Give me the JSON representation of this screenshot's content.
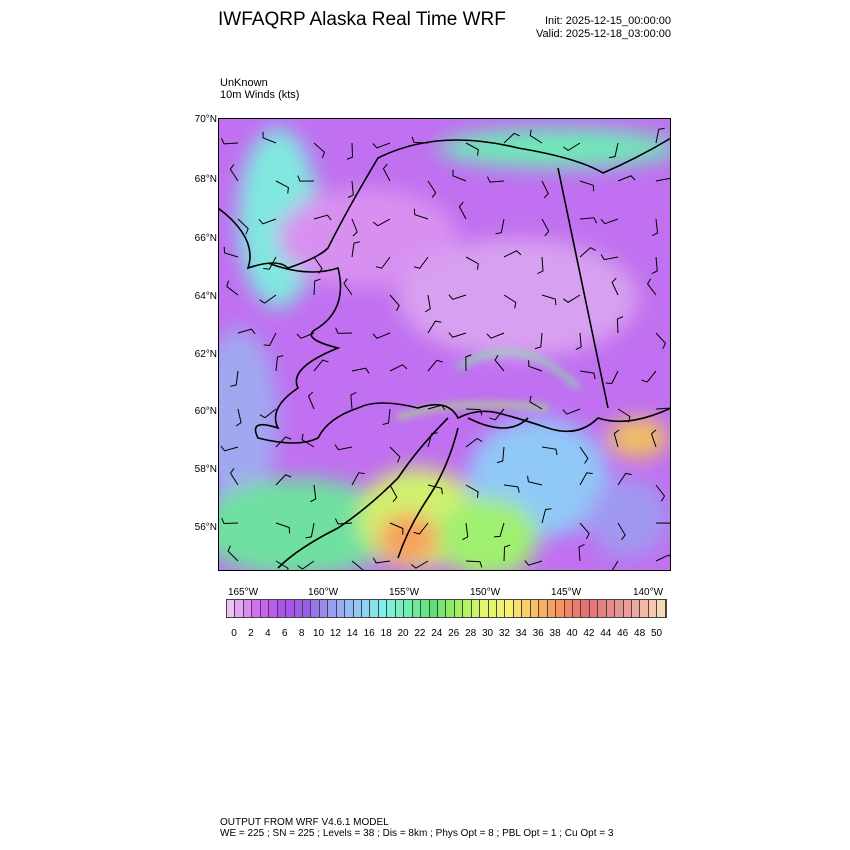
{
  "header": {
    "title": "IWFAQRP Alaska Real Time WRF",
    "init": "Init: 2025-12-15_00:00:00",
    "valid": "Valid: 2025-12-18_03:00:00"
  },
  "subtitle": {
    "line1": "UnKnown",
    "line2": "10m Winds   (kts)"
  },
  "map": {
    "lat_labels": [
      "70°N",
      "68°N",
      "66°N",
      "64°N",
      "62°N",
      "60°N",
      "58°N",
      "56°N"
    ],
    "lon_labels": [
      "165°W",
      "160°W",
      "155°W",
      "150°W",
      "145°W",
      "140°W"
    ],
    "field": "10m wind speed (kts) with wind barbs"
  },
  "colorbar": {
    "labels": [
      "0",
      "2",
      "4",
      "6",
      "8",
      "10",
      "12",
      "14",
      "16",
      "18",
      "20",
      "22",
      "24",
      "26",
      "28",
      "30",
      "32",
      "34",
      "36",
      "38",
      "40",
      "42",
      "44",
      "46",
      "48",
      "50"
    ],
    "color_stops": [
      "#f0c0f8",
      "#d070f0",
      "#b050f0",
      "#9860e8",
      "#98a0f0",
      "#90c8f8",
      "#80f0e8",
      "#70f0b0",
      "#60e070",
      "#a0f060",
      "#e0f868",
      "#f8f070",
      "#f8c060",
      "#f89060",
      "#e87070",
      "#e88888",
      "#f0a8a0",
      "#f8d8b0"
    ]
  },
  "footer": {
    "line1": "OUTPUT FROM WRF V4.6.1 MODEL",
    "line2": "WE = 225 ; SN = 225 ; Levels = 38 ; Dis = 8km ; Phys Opt = 8 ; PBL Opt = 1 ; Cu Opt = 3"
  }
}
